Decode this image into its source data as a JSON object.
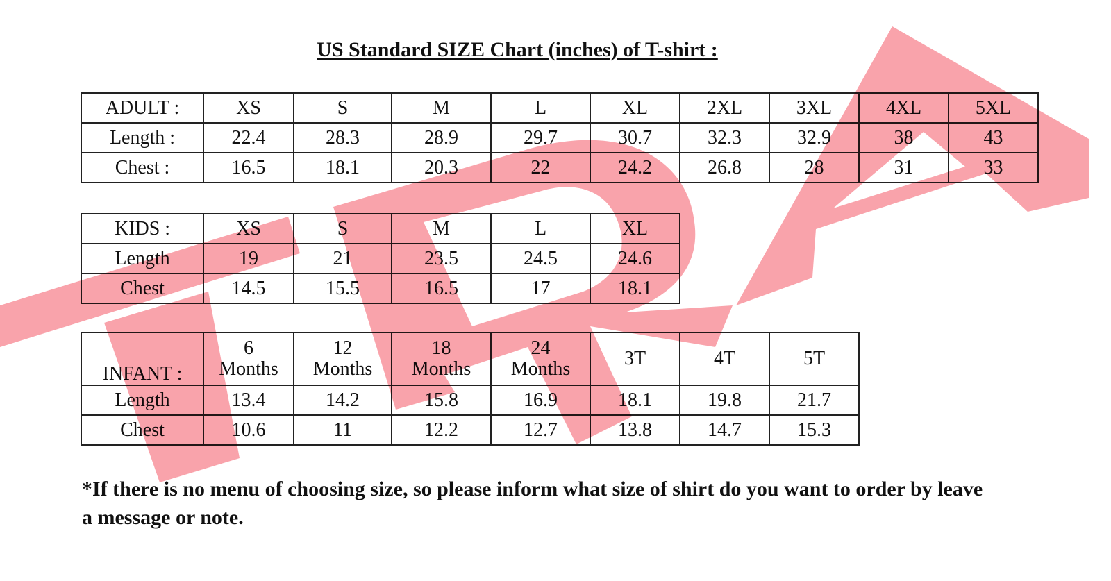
{
  "title": "US Standard SIZE  Chart (inches) of T-shirt :",
  "watermark": {
    "text": "TRA",
    "color": "#f9a3ab"
  },
  "adult": {
    "header": [
      "ADULT :",
      "XS",
      "S",
      "M",
      "L",
      "XL",
      "2XL",
      "3XL",
      "4XL",
      "5XL"
    ],
    "rows": [
      [
        "Length  :",
        "22.4",
        "28.3",
        "28.9",
        "29.7",
        "30.7",
        "32.3",
        "32.9",
        "38",
        "43"
      ],
      [
        "Chest :",
        "16.5",
        "18.1",
        "20.3",
        "22",
        "24.2",
        "26.8",
        "28",
        "31",
        "33"
      ]
    ]
  },
  "kids": {
    "header": [
      "KIDS :",
      "XS",
      "S",
      "M",
      "L",
      "XL"
    ],
    "rows": [
      [
        "Length",
        "19",
        "21",
        "23.5",
        "24.5",
        "24.6"
      ],
      [
        "Chest",
        "14.5",
        "15.5",
        "16.5",
        "17",
        "18.1"
      ]
    ]
  },
  "infant": {
    "header": [
      "INFANT :",
      "6\nMonths",
      "12\nMonths",
      "18\nMonths",
      "24\nMonths",
      "3T",
      "4T",
      "5T"
    ],
    "rows": [
      [
        "Length",
        "13.4",
        "14.2",
        "15.8",
        "16.9",
        "18.1",
        "19.8",
        "21.7"
      ],
      [
        "Chest",
        "10.6",
        "11",
        "12.2",
        "12.7",
        "13.8",
        "14.7",
        "15.3"
      ]
    ]
  },
  "note": "*If there is no menu of choosing size, so please inform what size of shirt do you want to order by leave a message or note."
}
